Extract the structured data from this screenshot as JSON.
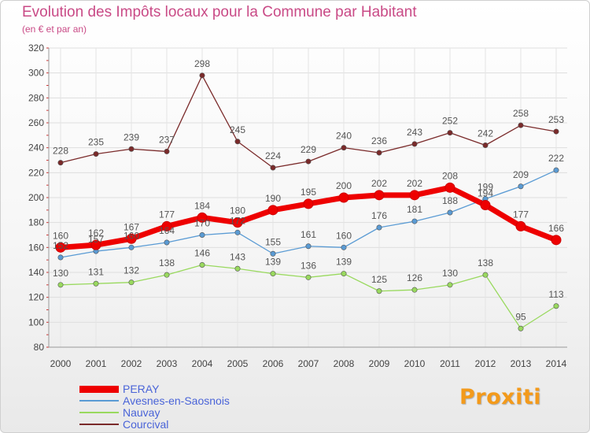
{
  "chart_data": {
    "type": "line",
    "title": "Evolution des Impôts locaux pour la Commune par Habitant",
    "subtitle": "(en € et par an)",
    "xlabel": "",
    "ylabel": "",
    "ylim": [
      80,
      320
    ],
    "yticks": [
      80,
      100,
      120,
      140,
      160,
      180,
      200,
      220,
      240,
      260,
      280,
      300,
      320
    ],
    "categories": [
      "2000",
      "2001",
      "2002",
      "2003",
      "2004",
      "2005",
      "2006",
      "2007",
      "2008",
      "2009",
      "2010",
      "2011",
      "2012",
      "2013",
      "2014"
    ],
    "grid": true,
    "legend_position": "bottom-left",
    "series": [
      {
        "name": "PERAY",
        "color": "#ee0000",
        "values": [
          160,
          162,
          167,
          177,
          184,
          180,
          190,
          195,
          200,
          202,
          202,
          208,
          194,
          177,
          166
        ]
      },
      {
        "name": "Avesnes-en-Saosnois",
        "color": "#5a9bd4",
        "values": [
          152,
          157,
          160,
          164,
          170,
          172,
          155,
          161,
          160,
          176,
          181,
          188,
          199,
          209,
          222
        ]
      },
      {
        "name": "Nauvay",
        "color": "#99d95e",
        "values": [
          130,
          131,
          132,
          138,
          146,
          143,
          139,
          136,
          139,
          125,
          126,
          130,
          138,
          95,
          113
        ]
      },
      {
        "name": "Courcival",
        "color": "#7a2a2a",
        "values": [
          228,
          235,
          239,
          237,
          298,
          245,
          224,
          229,
          240,
          236,
          243,
          252,
          242,
          258,
          253
        ]
      }
    ]
  },
  "branding": {
    "logo_text": "Proxiti"
  }
}
